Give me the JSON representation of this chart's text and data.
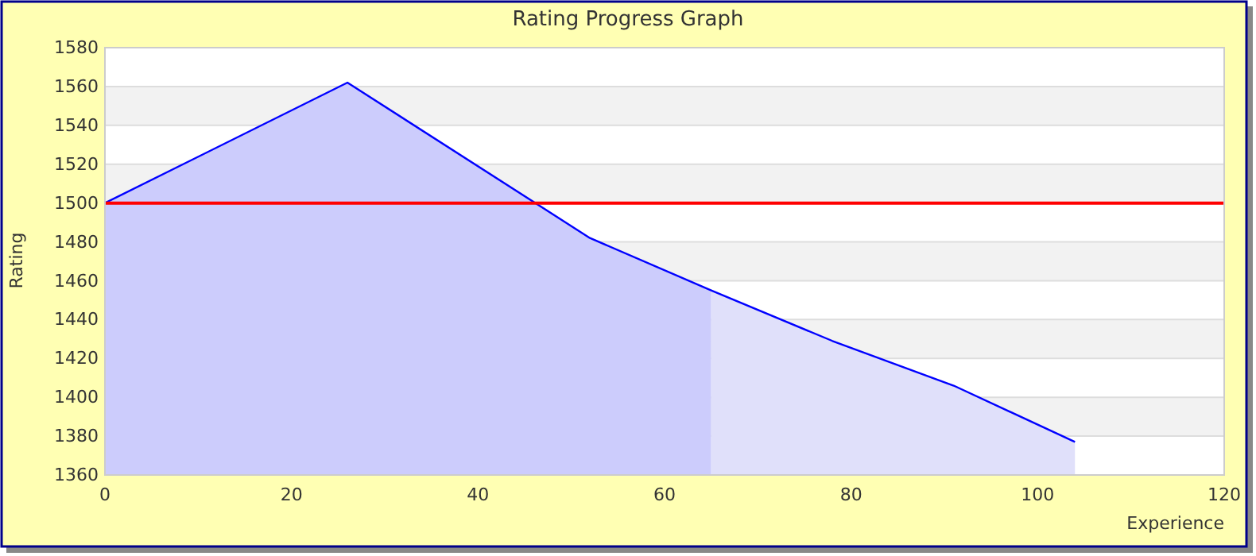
{
  "chart_data": {
    "type": "area",
    "title": "Rating Progress Graph",
    "xlabel": "Experience",
    "ylabel": "Rating",
    "xlim": [
      0,
      120
    ],
    "xticks": [
      0,
      20,
      40,
      60,
      80,
      100,
      120
    ],
    "ylim": [
      1360,
      1580
    ],
    "yticks": [
      1360,
      1380,
      1400,
      1420,
      1440,
      1460,
      1480,
      1500,
      1520,
      1540,
      1560,
      1580
    ],
    "grid": "y",
    "series": [
      {
        "color": "#ccccfc",
        "x": [
          0,
          26,
          52,
          65
        ],
        "values": [
          1500,
          1562,
          1482,
          1455
        ]
      },
      {
        "color": "#e0e0fa",
        "x": [
          65,
          78,
          91,
          104
        ],
        "values": [
          1455,
          1429,
          1406,
          1377
        ]
      },
      {
        "type": "line",
        "color": "#0000ff",
        "x": [
          0,
          26,
          52,
          65,
          78,
          91,
          104
        ],
        "values": [
          1500,
          1562,
          1482,
          1455,
          1429,
          1406,
          1377
        ]
      }
    ],
    "ref_lines": [
      {
        "axis": "y",
        "value": 1500,
        "color": "#ff0000"
      }
    ]
  }
}
